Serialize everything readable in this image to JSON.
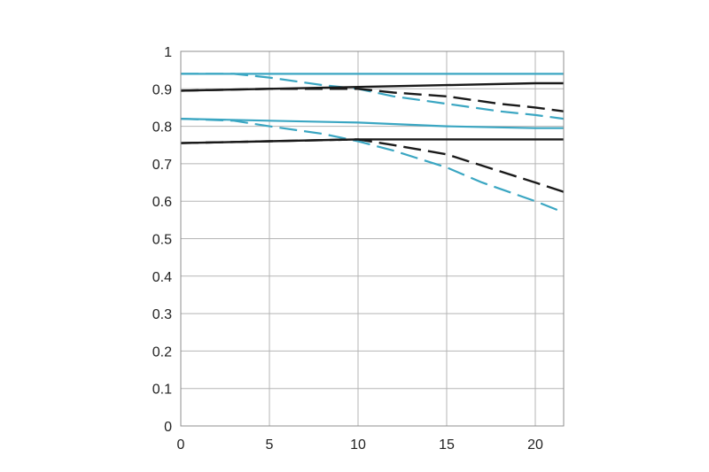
{
  "chart_data": {
    "type": "line",
    "title": "",
    "xlabel": "",
    "ylabel": "",
    "xlim": [
      0,
      21.6
    ],
    "ylim": [
      0,
      1
    ],
    "x_ticks": [
      0,
      5,
      10,
      15,
      20
    ],
    "y_ticks": [
      0,
      0.1,
      0.2,
      0.3,
      0.4,
      0.5,
      0.6,
      0.7,
      0.8,
      0.9,
      1
    ],
    "x_tick_labels": [
      "0",
      "5",
      "10",
      "15",
      "20"
    ],
    "y_tick_labels": [
      "0",
      "0.1",
      "0.2",
      "0.3",
      "0.4",
      "0.5",
      "0.6",
      "0.7",
      "0.8",
      "0.9",
      "1"
    ],
    "grid": true,
    "legend": false,
    "colors": {
      "black": "#1a1a1a",
      "blue": "#3aa6c2"
    },
    "series": [
      {
        "color": "blue",
        "dash": false,
        "x": [
          0,
          5,
          10,
          15,
          20,
          21.6
        ],
        "y": [
          0.94,
          0.94,
          0.94,
          0.94,
          0.94,
          0.94
        ]
      },
      {
        "color": "blue",
        "dash": true,
        "x": [
          0,
          3,
          5,
          8,
          10,
          12,
          15,
          18,
          20,
          21.6
        ],
        "y": [
          0.94,
          0.94,
          0.93,
          0.91,
          0.9,
          0.88,
          0.86,
          0.84,
          0.83,
          0.82
        ]
      },
      {
        "color": "black",
        "dash": false,
        "x": [
          0,
          5,
          10,
          15,
          20,
          21.6
        ],
        "y": [
          0.895,
          0.9,
          0.905,
          0.91,
          0.915,
          0.915
        ]
      },
      {
        "color": "black",
        "dash": true,
        "x": [
          0,
          5,
          10,
          12,
          15,
          18,
          20,
          21.6
        ],
        "y": [
          0.895,
          0.9,
          0.9,
          0.89,
          0.88,
          0.86,
          0.85,
          0.84
        ]
      },
      {
        "color": "blue",
        "dash": false,
        "x": [
          0,
          5,
          10,
          15,
          20,
          21.6
        ],
        "y": [
          0.82,
          0.815,
          0.81,
          0.8,
          0.795,
          0.795
        ]
      },
      {
        "color": "blue",
        "dash": true,
        "x": [
          0,
          3,
          5,
          8,
          10,
          12,
          15,
          17,
          20,
          21.6
        ],
        "y": [
          0.82,
          0.815,
          0.8,
          0.78,
          0.76,
          0.735,
          0.69,
          0.65,
          0.6,
          0.57
        ]
      },
      {
        "color": "black",
        "dash": false,
        "x": [
          0,
          5,
          10,
          15,
          20,
          21.6
        ],
        "y": [
          0.755,
          0.76,
          0.765,
          0.765,
          0.765,
          0.765
        ]
      },
      {
        "color": "black",
        "dash": true,
        "x": [
          0,
          5,
          10,
          12,
          15,
          18,
          20,
          21.6
        ],
        "y": [
          0.755,
          0.76,
          0.765,
          0.75,
          0.725,
          0.68,
          0.65,
          0.625
        ]
      }
    ]
  }
}
